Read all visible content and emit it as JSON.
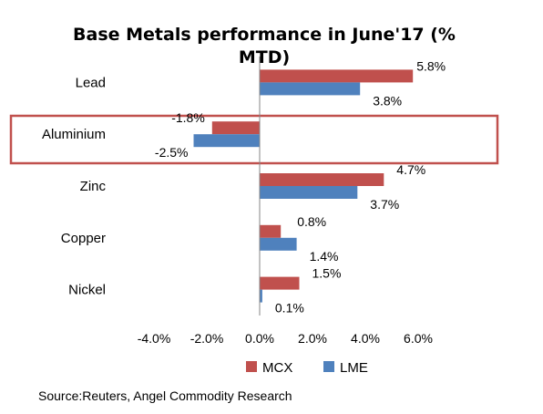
{
  "chart_data": {
    "type": "bar",
    "orientation": "horizontal",
    "title_line1": "Base Metals performance in June'17 (%",
    "title_line2": "MTD)",
    "categories": [
      "Lead",
      "Aluminium",
      "Zinc",
      "Copper",
      "Nickel"
    ],
    "series": [
      {
        "name": "MCX",
        "color": "#C0504D",
        "values": [
          5.8,
          -1.8,
          4.7,
          0.8,
          1.5
        ],
        "labels": [
          "5.8%",
          "-1.8%",
          "4.7%",
          "0.8%",
          "1.5%"
        ]
      },
      {
        "name": "LME",
        "color": "#4F81BD",
        "values": [
          3.8,
          -2.5,
          3.7,
          1.4,
          0.1
        ],
        "labels": [
          "3.8%",
          "-2.5%",
          "3.7%",
          "1.4%",
          "0.1%"
        ]
      }
    ],
    "xlim": [
      -4.0,
      6.0
    ],
    "xticks": [
      -4.0,
      -2.0,
      0.0,
      2.0,
      4.0,
      6.0
    ],
    "xtick_labels": [
      "-4.0%",
      "-2.0%",
      "0.0%",
      "2.0%",
      "4.0%",
      "6.0%"
    ],
    "highlighted_category": "Aluminium",
    "highlight_color": "#C0504D",
    "grid": false,
    "legend_position": "bottom"
  },
  "source_text": "Source:Reuters, Angel Commodity Research"
}
